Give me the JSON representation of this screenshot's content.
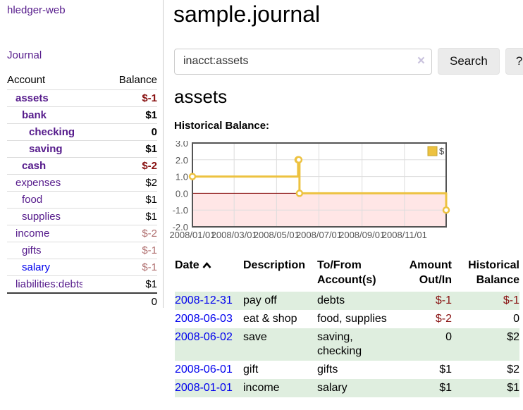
{
  "colors": {
    "link_purple": "#551a8b",
    "link_blue": "#0000ee",
    "negative_strong": "#881111",
    "negative_muted": "#b06f6f",
    "row_green": "#dfeedf",
    "chart_gold": "#edc240",
    "chart_negative_fill": "#ffe6e6",
    "chart_zero_line": "#800000",
    "chart_grid": "#dddddd",
    "chart_border": "#545454",
    "chart_tick_text": "#545454"
  },
  "sidebar": {
    "brand": "hledger-web",
    "journal_link": "Journal",
    "accounts": {
      "account_header": "Account",
      "balance_header": "Balance",
      "rows": [
        {
          "label": "assets",
          "balance": "$-1",
          "depth": 1,
          "emph": true,
          "neg": "strong"
        },
        {
          "label": "bank",
          "balance": "$1",
          "depth": 2,
          "emph": true
        },
        {
          "label": "checking",
          "balance": "0",
          "depth": 3,
          "emph": true
        },
        {
          "label": "saving",
          "balance": "$1",
          "depth": 3,
          "emph": true
        },
        {
          "label": "cash",
          "balance": "$-2",
          "depth": 2,
          "emph": true,
          "neg": "strong"
        },
        {
          "label": "expenses",
          "balance": "$2",
          "depth": 1
        },
        {
          "label": "food",
          "balance": "$1",
          "depth": 2
        },
        {
          "label": "supplies",
          "balance": "$1",
          "depth": 2
        },
        {
          "label": "income",
          "balance": "$-2",
          "depth": 1,
          "neg": "muted"
        },
        {
          "label": "gifts",
          "balance": "$-1",
          "depth": 2,
          "neg": "muted"
        },
        {
          "label": "salary",
          "balance": "$-1",
          "depth": 2,
          "neg": "muted",
          "link": "blue"
        },
        {
          "label": "liabilities:debts",
          "balance": "$1",
          "depth": 1
        }
      ],
      "total": "0"
    }
  },
  "main": {
    "title": "sample.journal",
    "search": {
      "value": "inacct:assets",
      "clear_icon": "×",
      "button_label": "Search",
      "help_label": "?"
    },
    "account_heading": "assets",
    "chart_label": "Historical Balance:"
  },
  "chart_data": {
    "type": "line",
    "step": true,
    "title": "Historical Balance",
    "xrange": [
      "2008-01-01",
      "2008-12-31"
    ],
    "ylim": [
      -2,
      3
    ],
    "yticks": [
      {
        "v": 3,
        "label": "3.0"
      },
      {
        "v": 2,
        "label": "2.0"
      },
      {
        "v": 1,
        "label": "1.0"
      },
      {
        "v": 0,
        "label": "0.0"
      },
      {
        "v": -1,
        "label": "-1.0"
      },
      {
        "v": -2,
        "label": "-2.0"
      }
    ],
    "xticks": [
      "2008/01/01",
      "2008/03/01",
      "2008/05/01",
      "2008/07/01",
      "2008/09/01",
      "2008/11/01"
    ],
    "legend_position": "top-right",
    "grid": true,
    "series": [
      {
        "name": "$",
        "color": "#edc240",
        "points": [
          [
            "2008-01-01",
            1
          ],
          [
            "2008-06-01",
            2
          ],
          [
            "2008-06-02",
            2
          ],
          [
            "2008-06-03",
            0
          ],
          [
            "2008-12-31",
            -1
          ]
        ]
      }
    ]
  },
  "register": {
    "columns": [
      "Date",
      "Description",
      "To/From Account(s)",
      "Amount Out/In",
      "Historical Balance"
    ],
    "sort_icon": "chevron-up",
    "rows": [
      {
        "date": "2008-12-31",
        "description": "pay off",
        "accounts": "debts",
        "amount": "$-1",
        "amount_neg": true,
        "balance": "$-1",
        "balance_neg": true
      },
      {
        "date": "2008-06-03",
        "description": "eat & shop",
        "accounts": "food, supplies",
        "amount": "$-2",
        "amount_neg": true,
        "balance": "0"
      },
      {
        "date": "2008-06-02",
        "description": "save",
        "accounts": "saving, checking",
        "amount": "0",
        "balance": "$2"
      },
      {
        "date": "2008-06-01",
        "description": "gift",
        "accounts": "gifts",
        "amount": "$1",
        "balance": "$2"
      },
      {
        "date": "2008-01-01",
        "description": "income",
        "accounts": "salary",
        "amount": "$1",
        "balance": "$1"
      }
    ]
  }
}
